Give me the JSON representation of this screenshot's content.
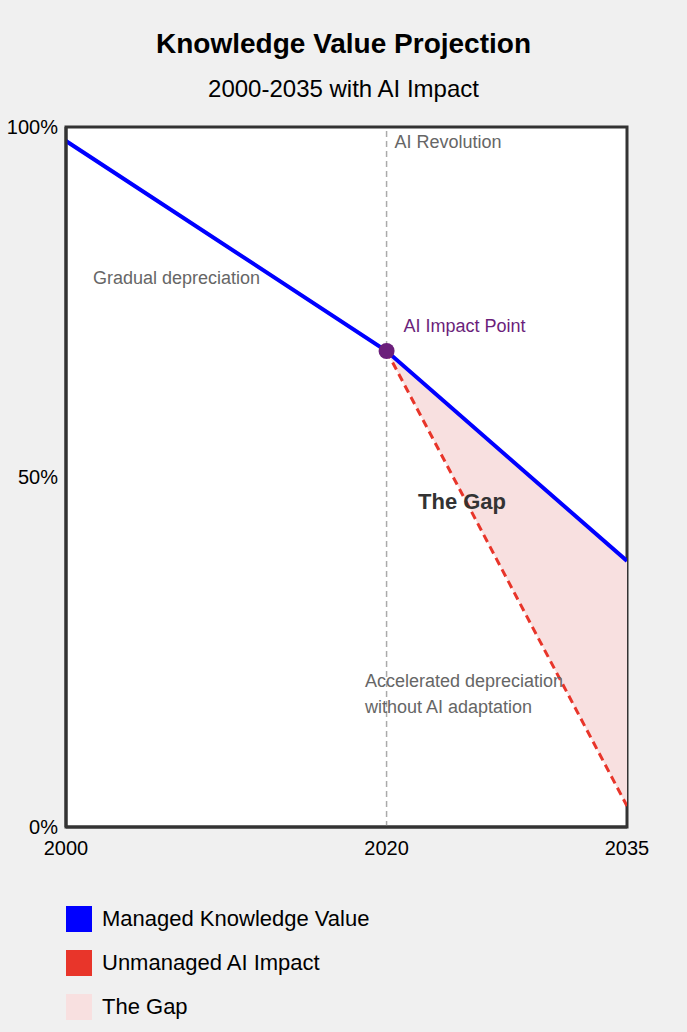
{
  "chart_data": {
    "type": "line",
    "title": "Knowledge Value Projection",
    "subtitle": "2000-2035 with AI Impact",
    "x": [
      2000,
      2020,
      2035
    ],
    "xlim": [
      2000,
      2035
    ],
    "xticks": [
      2000,
      2020,
      2035
    ],
    "ylim": [
      0,
      100
    ],
    "yticks": [
      {
        "value": 0,
        "label": "0%"
      },
      {
        "value": 50,
        "label": "50%"
      },
      {
        "value": 100,
        "label": "100%"
      }
    ],
    "grid": false,
    "series": [
      {
        "name": "Managed Knowledge Value",
        "color": "#0000ff",
        "line_style": "solid",
        "values": [
          98,
          68,
          38
        ]
      },
      {
        "name": "Unmanaged AI Impact",
        "color": "#e8352a",
        "line_style": "dashed",
        "values": [
          null,
          68,
          3
        ]
      },
      {
        "name": "The Gap",
        "type": "range",
        "color": "#f8e0e0",
        "values": [
          null,
          [
            68,
            68
          ],
          [
            3,
            38
          ]
        ]
      }
    ],
    "events": [
      {
        "x": 2020,
        "label": "AI Revolution",
        "color": "#aaaaaa"
      }
    ],
    "points": [
      {
        "x": 2020,
        "y": 68,
        "label": "AI Impact Point",
        "color": "#6b1f7b"
      }
    ],
    "annotations": [
      "Gradual depreciation",
      "The Gap",
      "Accelerated depreciation\nwithout AI adaptation"
    ]
  }
}
